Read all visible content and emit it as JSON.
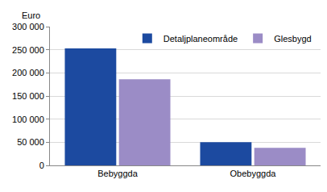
{
  "chart_data": {
    "type": "bar",
    "ylabel": "Euro",
    "categories": [
      "Bebyggda",
      "Obebyggda"
    ],
    "series": [
      {
        "name": "Detaljplaneområde",
        "color": "#1c4aa0",
        "values": [
          253000,
          50000
        ]
      },
      {
        "name": "Glesbygd",
        "color": "#9b8cc6",
        "values": [
          186000,
          38000
        ]
      }
    ],
    "ylim": [
      0,
      300000
    ],
    "yticks": [
      0,
      {
        "value": 50000,
        "label": "50 000"
      },
      {
        "value": 100000,
        "label": "100 000"
      },
      {
        "value": 150000,
        "label": "150 000"
      },
      {
        "value": 200000,
        "label": "200 000"
      },
      {
        "value": 250000,
        "label": "250 000"
      },
      {
        "value": 300000,
        "label": "300 000"
      }
    ],
    "grid": true,
    "legend": "top"
  }
}
